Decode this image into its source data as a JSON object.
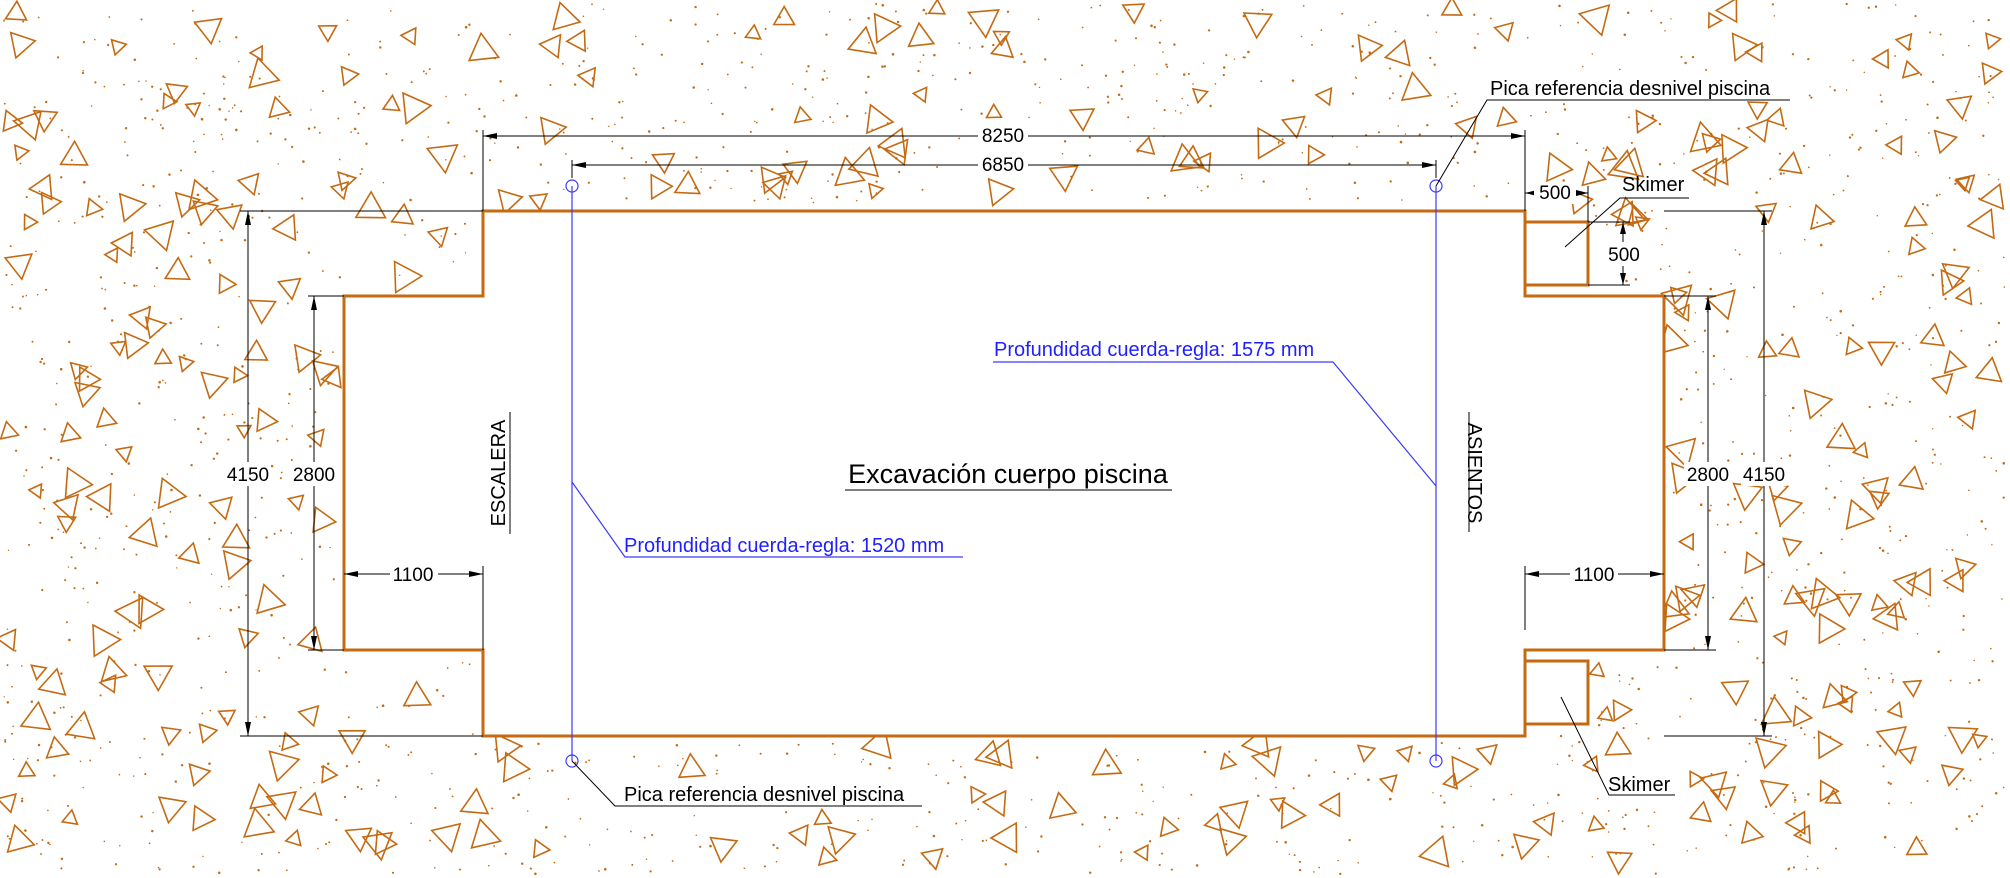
{
  "title": "Excavación cuerpo piscina",
  "dimensions": {
    "total_length": "8250",
    "stake_distance": "6850",
    "total_width_left": "4150",
    "total_width_right": "4150",
    "inner_width_left": "2800",
    "inner_width_right": "2800",
    "step_left": "1100",
    "step_right": "1100",
    "skimmer_width": "500",
    "skimmer_depth": "500"
  },
  "labels": {
    "stairs": "ESCALERA",
    "seats": "ASIENTOS",
    "stake_top": "Pica referencia desnivel piscina",
    "stake_bottom": "Pica referencia desnivel piscina",
    "skimmer_top": "Skimer",
    "skimmer_bottom": "Skimer",
    "depth_left": "Profundidad cuerda-regla: 1520 mm",
    "depth_right": "Profundidad cuerda-regla: 1575 mm"
  },
  "colors": {
    "outline": "#c46a12",
    "soil_hatch": "#c46a12",
    "reference": "#1f1fff",
    "dimension": "#000000"
  }
}
